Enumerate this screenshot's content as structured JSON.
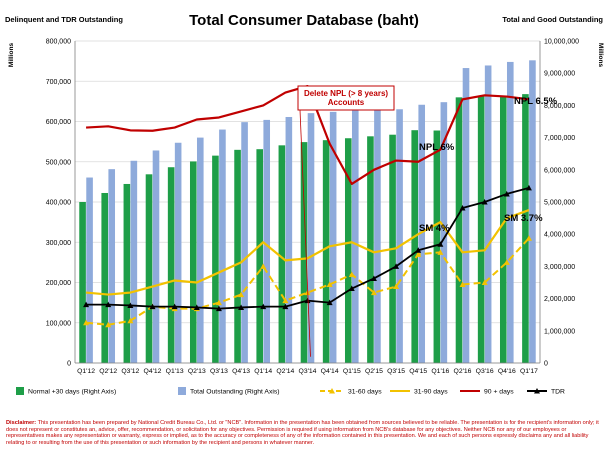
{
  "chart_data": {
    "type": "bar+line",
    "title": "Total Consumer Database (baht)",
    "left_axis_title": "Delinquent and TDR Outstanding",
    "right_axis_title": "Total and Good Outstanding",
    "left_unit": "Millions",
    "right_unit": "Millions",
    "categories": [
      "Q1'12",
      "Q2'12",
      "Q3'12",
      "Q4'12",
      "Q1'13",
      "Q2'13",
      "Q3'13",
      "Q4'13",
      "Q1'14",
      "Q2'14",
      "Q3'14",
      "Q4'14",
      "Q1'15",
      "Q2'15",
      "Q3'15",
      "Q4'15",
      "Q1'16",
      "Q2'16",
      "Q3'16",
      "Q4'16",
      "Q1'17"
    ],
    "left_ylim": [
      0,
      800000
    ],
    "left_ticks": [
      "0",
      "100,000",
      "200,000",
      "300,000",
      "400,000",
      "500,000",
      "600,000",
      "700,000",
      "800,000"
    ],
    "right_ylim": [
      0,
      10000000
    ],
    "right_ticks": [
      "0",
      "1,000,000",
      "2,000,000",
      "3,000,000",
      "4,000,000",
      "5,000,000",
      "6,000,000",
      "7,000,000",
      "8,000,000",
      "9,000,000",
      "10,000,000"
    ],
    "series": [
      {
        "name": "Normal +30 days (Right Axis)",
        "axis": "right",
        "kind": "bar",
        "color": "#1e9e48",
        "values": [
          5000000,
          5280000,
          5560000,
          5860000,
          6080000,
          6260000,
          6440000,
          6620000,
          6640000,
          6760000,
          6860000,
          6920000,
          6980000,
          7040000,
          7090000,
          7230000,
          7220000,
          8250000,
          8300000,
          8300000,
          8350000
        ]
      },
      {
        "name": "Total Outstanding (Right Axis)",
        "axis": "right",
        "kind": "bar",
        "color": "#8eaadb",
        "values": [
          5760000,
          6020000,
          6280000,
          6600000,
          6840000,
          7000000,
          7250000,
          7480000,
          7550000,
          7640000,
          7760000,
          7800000,
          7840000,
          7880000,
          7880000,
          8020000,
          8100000,
          9160000,
          9240000,
          9350000,
          9400000
        ]
      },
      {
        "name": "31-60 days",
        "axis": "left",
        "kind": "line",
        "color": "#f2c200",
        "dash": true,
        "values": [
          100000,
          95000,
          105000,
          140000,
          135000,
          135000,
          150000,
          170000,
          240000,
          155000,
          175000,
          195000,
          220000,
          175000,
          190000,
          270000,
          275000,
          195000,
          200000,
          250000,
          310000
        ]
      },
      {
        "name": "31-90 days",
        "axis": "left",
        "kind": "line",
        "color": "#f2c200",
        "dash": false,
        "values": [
          175000,
          170000,
          175000,
          190000,
          205000,
          200000,
          225000,
          250000,
          300000,
          255000,
          260000,
          290000,
          300000,
          275000,
          285000,
          320000,
          350000,
          275000,
          280000,
          360000,
          380000
        ]
      },
      {
        "name": "90 + days",
        "axis": "left",
        "kind": "line",
        "color": "#c00000",
        "dash": false,
        "values": [
          585000,
          588000,
          578000,
          577000,
          585000,
          605000,
          610000,
          625000,
          640000,
          672000,
          688000,
          545000,
          445000,
          480000,
          503000,
          500000,
          530000,
          655000,
          665000,
          662000,
          655000
        ]
      },
      {
        "name": "TDR",
        "axis": "left",
        "kind": "line",
        "color": "#000000",
        "dash": false,
        "values": [
          145000,
          145000,
          143000,
          140000,
          140000,
          138000,
          135000,
          138000,
          140000,
          140000,
          155000,
          150000,
          185000,
          210000,
          240000,
          280000,
          295000,
          385000,
          400000,
          420000,
          435000
        ]
      }
    ],
    "annotations": {
      "delete_npl": "Delete NPL (> 8 years)\nAccounts",
      "npl_6_5": "NPL 6.5%",
      "npl_6": "NPL 6%",
      "sm_4": "SM 4%",
      "sm_3_7": "SM 3.7%"
    }
  },
  "disclaimer": {
    "label": "Disclaimer:",
    "text": "This presentation has been prepared by National Credit Bureau Co., Ltd. or \"NCB\". Information in the presentation has been obtained from sources believed to be reliable. The presentation is for the recipient's information only; it does not represent or constitutes an, advice, offer, recommendation, or solicitation for any objectives. Permission is required if using information from NCB's database for any objectives. Neither NCB nor any of our employees or representatives makes any representation or warranty, express or implied, as to the accuracy or completeness of any of the information contained in this presentation. We and each of such persons expressly disclaims any and all liability relating to or resulting from the use of this presentation or such information by the recipient and persons in whatever manner."
  }
}
